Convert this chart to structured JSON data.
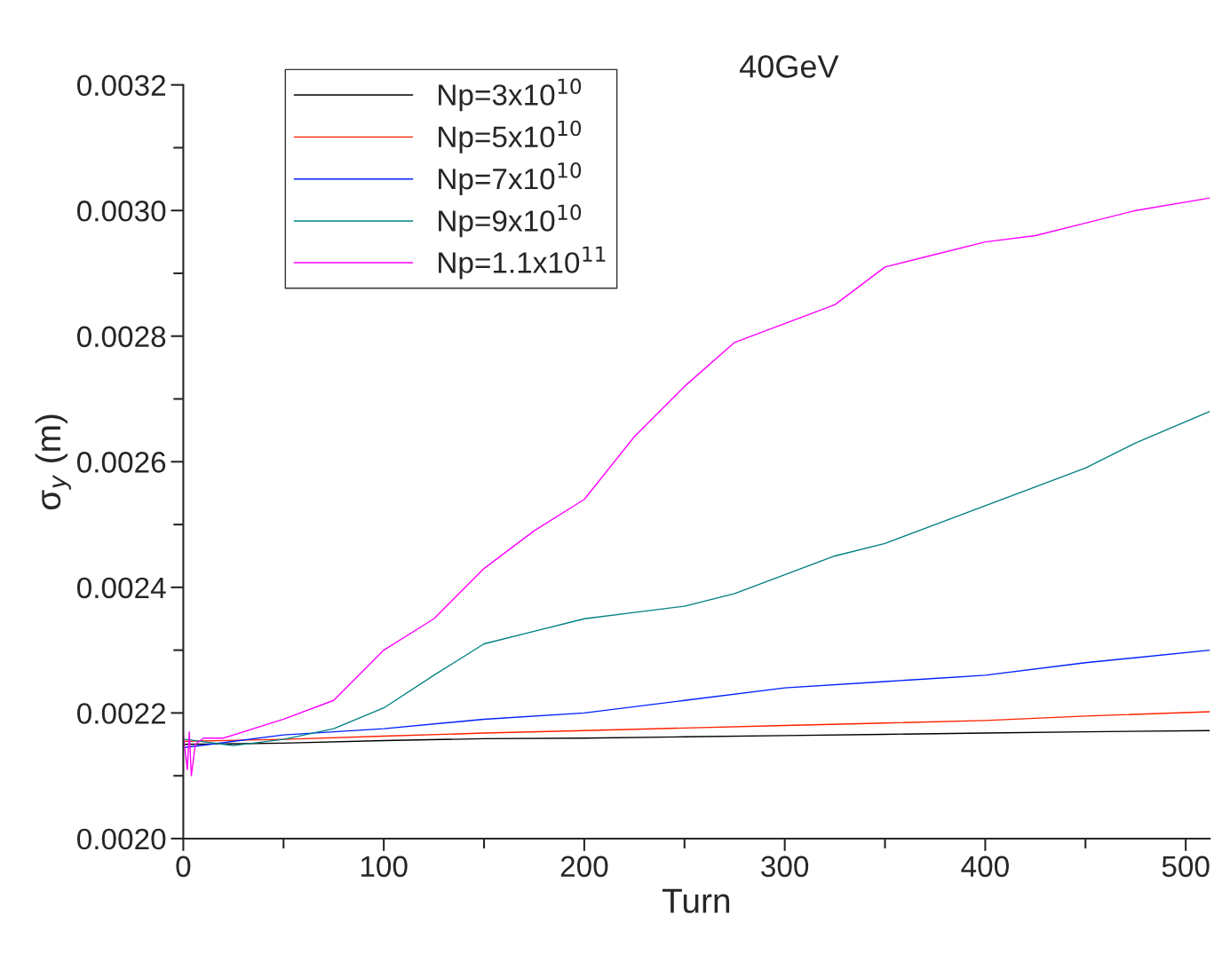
{
  "chart_data": {
    "type": "line",
    "title": "40GeV",
    "xlabel": "Turn",
    "ylabel": "σ$_{y}$ (m)",
    "xlim": [
      0,
      512
    ],
    "ylim": [
      0.002,
      0.0032
    ],
    "xticks": [
      0,
      {
        "value": 50,
        "label": null
      },
      100,
      {
        "value": 150,
        "label": null
      },
      200,
      {
        "value": 250,
        "label": null
      },
      300,
      {
        "value": 350,
        "label": null
      },
      400,
      {
        "value": 450,
        "label": null
      },
      500
    ],
    "yticks": [
      {
        "value": 0.002,
        "label": "0.0020"
      },
      {
        "value": 0.0021,
        "label": null
      },
      {
        "value": 0.0022,
        "label": "0.0022"
      },
      {
        "value": 0.0023,
        "label": null
      },
      {
        "value": 0.0024,
        "label": "0.0024"
      },
      {
        "value": 0.0025,
        "label": null
      },
      {
        "value": 0.0026,
        "label": "0.0026"
      },
      {
        "value": 0.0027,
        "label": null
      },
      {
        "value": 0.0028,
        "label": "0.0028"
      },
      {
        "value": 0.0029,
        "label": null
      },
      {
        "value": 0.003,
        "label": "0.0030"
      },
      {
        "value": 0.0031,
        "label": null
      },
      {
        "value": 0.0032,
        "label": "0.0032"
      }
    ],
    "legend": "top left",
    "grid": false,
    "marker": "none",
    "line_style": "solid",
    "series": [
      {
        "name": "Np=3x10$^{10}$",
        "color": "#000000",
        "x": [
          1,
          50,
          100,
          150,
          200,
          250,
          300,
          350,
          400,
          450,
          512
        ],
        "values": [
          0.00215,
          0.002152,
          0.002156,
          0.002159,
          0.00216,
          0.002162,
          0.002164,
          0.002166,
          0.002168,
          0.00217,
          0.002172
        ]
      },
      {
        "name": "Np=5x10$^{10}$",
        "color": "#ff2000",
        "x": [
          1,
          50,
          100,
          150,
          200,
          250,
          300,
          350,
          400,
          450,
          512
        ],
        "values": [
          0.002155,
          0.002158,
          0.002163,
          0.002168,
          0.002172,
          0.002176,
          0.00218,
          0.002184,
          0.002188,
          0.002195,
          0.002202
        ]
      },
      {
        "name": "Np=7x10$^{10}$",
        "color": "#0020ff",
        "x": [
          1,
          50,
          100,
          150,
          200,
          250,
          300,
          350,
          400,
          450,
          512
        ],
        "values": [
          0.002145,
          0.002165,
          0.002175,
          0.00219,
          0.0022,
          0.00222,
          0.00224,
          0.00225,
          0.00226,
          0.00228,
          0.0023
        ]
      },
      {
        "name": "Np=9x10$^{10}$",
        "color": "#008080",
        "x": [
          1,
          25,
          50,
          75,
          100,
          125,
          150,
          175,
          200,
          225,
          250,
          275,
          300,
          325,
          350,
          375,
          400,
          425,
          450,
          475,
          512
        ],
        "values": [
          0.002158,
          0.002148,
          0.002158,
          0.002175,
          0.002208,
          0.00226,
          0.00231,
          0.00233,
          0.00235,
          0.00236,
          0.00237,
          0.00239,
          0.00242,
          0.00245,
          0.00247,
          0.0025,
          0.00253,
          0.00256,
          0.00259,
          0.00263,
          0.00268
        ]
      },
      {
        "name": "Np=1.1x10$^{11}$",
        "color": "#ff00ff",
        "x": [
          0,
          2,
          3,
          4,
          6,
          10,
          20,
          50,
          75,
          100,
          125,
          150,
          175,
          200,
          225,
          250,
          275,
          300,
          325,
          350,
          375,
          400,
          425,
          450,
          475,
          512
        ],
        "values": [
          0.002165,
          0.00211,
          0.00217,
          0.0021,
          0.00215,
          0.00216,
          0.00216,
          0.00219,
          0.00222,
          0.0023,
          0.00235,
          0.00243,
          0.00249,
          0.00254,
          0.00264,
          0.00272,
          0.00279,
          0.00282,
          0.00285,
          0.00291,
          0.00293,
          0.00295,
          0.00296,
          0.00298,
          0.003,
          0.00302
        ]
      }
    ]
  }
}
